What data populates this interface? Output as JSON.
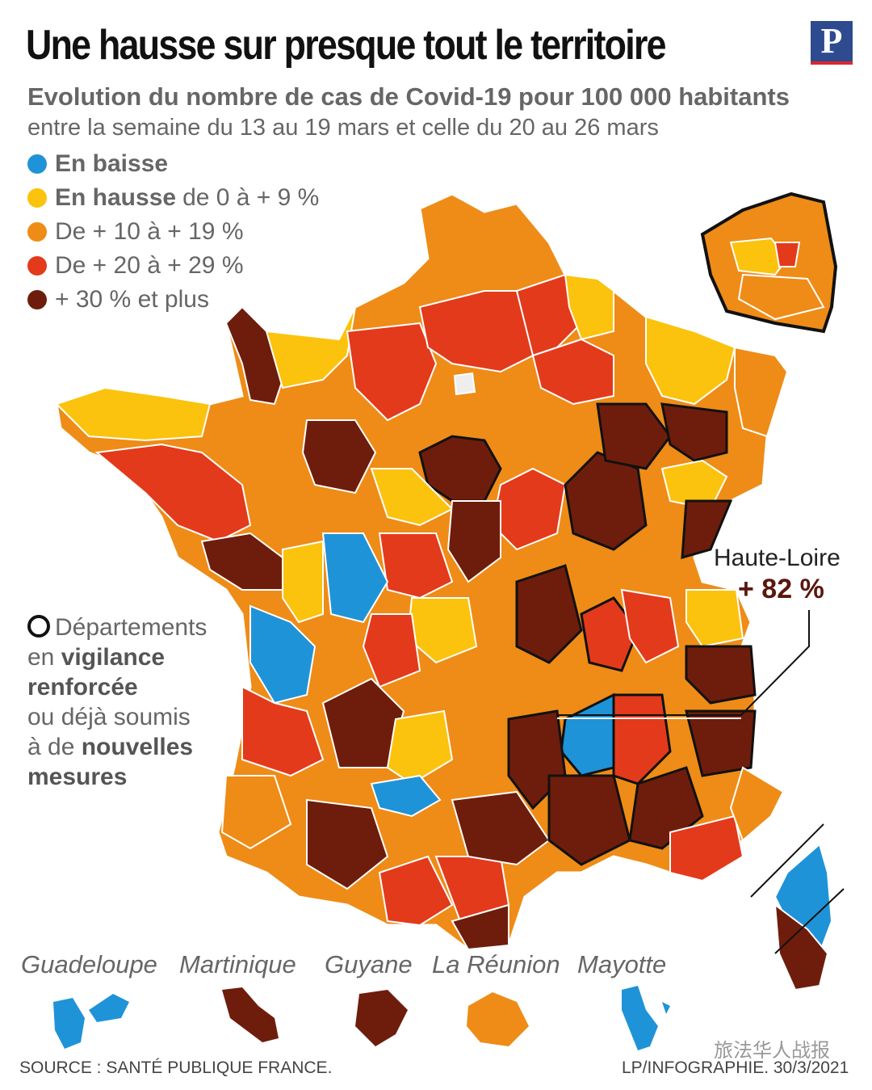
{
  "header": {
    "title": "Une hausse sur presque tout le territoire",
    "logo_letter": "P",
    "subtitle": "Evolution du nombre de cas de Covid-19 pour 100 000 habitants",
    "subtitle2": "entre la semaine du 13 au 19 mars et celle du 20 au 26 mars"
  },
  "legend": [
    {
      "bold": "En baisse",
      "text": "",
      "color": "#1f93d8"
    },
    {
      "bold": "En hausse",
      "text": "de 0 à + 9 %",
      "color": "#fbc30d"
    },
    {
      "bold": "",
      "text": "De + 10 à + 19 %",
      "color": "#ee8c17"
    },
    {
      "bold": "",
      "text": "De + 20 à + 29 %",
      "color": "#e33a1c"
    },
    {
      "bold": "",
      "text": "+ 30 % et plus",
      "color": "#6e1d0c"
    }
  ],
  "vigilance": {
    "line1": "Départements",
    "line2_pre": "en",
    "line2_bold": "vigilance",
    "line3_bold": "renforcée",
    "line4": "ou déjà soumis",
    "line5_pre": "à de",
    "line5_bold": "nouvelles",
    "line6_bold": "mesures"
  },
  "callout": {
    "name": "Haute-Loire",
    "value": "+ 82 %"
  },
  "overseas": [
    {
      "name": "Guadeloupe",
      "color": "#1f93d8"
    },
    {
      "name": "Martinique",
      "color": "#6e1d0c"
    },
    {
      "name": "Guyane",
      "color": "#6e1d0c"
    },
    {
      "name": "La Réunion",
      "color": "#ee8c17"
    },
    {
      "name": "Mayotte",
      "color": "#1f93d8"
    }
  ],
  "footer": {
    "source": "SOURCE : SANTÉ PUBLIQUE FRANCE.",
    "credit": "LP/INFOGRAPHIE.  30/3/2021"
  },
  "watermark": {
    "text": "旅法华人战报"
  }
}
